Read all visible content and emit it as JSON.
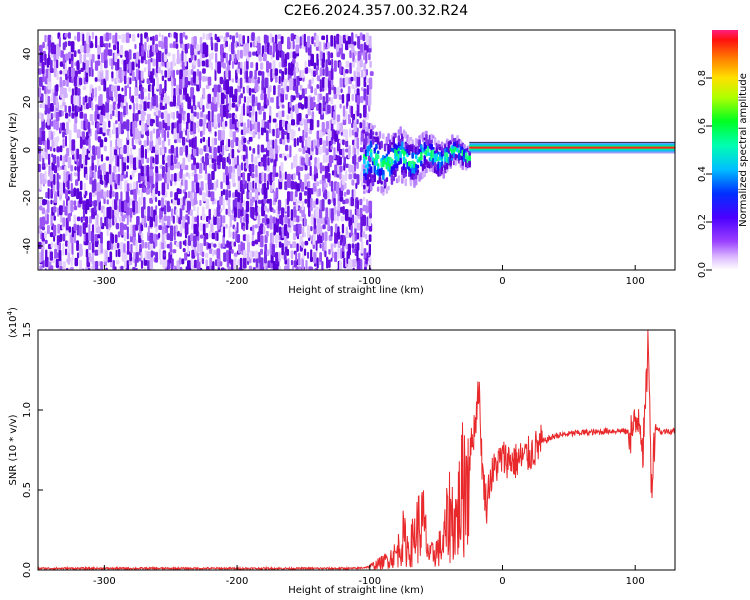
{
  "title": "C2E6.2024.357.00.32.R24",
  "colors": {
    "snr_line": "#e8282a",
    "noise_purple": "#7a2ee8",
    "ridge_red": "#ff2020"
  },
  "chart_data": [
    {
      "type": "heatmap",
      "xlabel": "Height of straight line (km)",
      "ylabel": "Frequency (Hz)",
      "xlim": [
        -350,
        130
      ],
      "ylim": [
        -50,
        50
      ],
      "xticks": [
        -300,
        -200,
        -100,
        0,
        100
      ],
      "yticks": [
        -40,
        -20,
        0,
        20,
        40
      ],
      "colorbar": {
        "label": "Normalized spectral amplitude",
        "range": [
          0.0,
          1.0
        ],
        "ticks": [
          "0.0",
          "0.2",
          "0.4",
          "0.6",
          "0.8"
        ],
        "tick_values": [
          0.0,
          0.2,
          0.4,
          0.6,
          0.8
        ]
      },
      "features": {
        "noise_region_x": [
          -350,
          -100
        ],
        "transition_region_x": [
          -105,
          -25
        ],
        "ridge_frequency_hz": 1,
        "ridge_region_x": [
          -25,
          130
        ]
      }
    },
    {
      "type": "line",
      "xlabel": "Height of straight line (km)",
      "ylabel": "SNR (10 * v/v)",
      "yscale_label": "(x10",
      "yscale_exp": "4",
      "yscale_close": ")",
      "xlim": [
        -350,
        130
      ],
      "ylim": [
        0.0,
        1.5
      ],
      "xticks": [
        -300,
        -200,
        -100,
        0,
        100
      ],
      "yticks": [
        "0.0",
        "0.5",
        "1.0",
        "1.5"
      ],
      "ytick_values": [
        0.0,
        0.5,
        1.0,
        1.5
      ],
      "series": [
        {
          "x": [
            -350,
            -300,
            -250,
            -200,
            -150,
            -110,
            -100,
            -90,
            -80,
            -75,
            -70,
            -65,
            -60,
            -55,
            -50,
            -45,
            -40,
            -35,
            -30,
            -25,
            -20,
            -18,
            -15,
            -12,
            -10,
            -5,
            0,
            10,
            20,
            30,
            40,
            50,
            60,
            70,
            80,
            90,
            95,
            100,
            103,
            106,
            108,
            110,
            112,
            115,
            120,
            125,
            130
          ],
          "y": [
            0.01,
            0.01,
            0.01,
            0.01,
            0.01,
            0.01,
            0.02,
            0.05,
            0.1,
            0.2,
            0.12,
            0.25,
            0.3,
            0.08,
            0.12,
            0.15,
            0.35,
            0.3,
            0.5,
            0.7,
            0.95,
            1.17,
            0.6,
            0.4,
            0.55,
            0.65,
            0.7,
            0.68,
            0.72,
            0.8,
            0.84,
            0.85,
            0.86,
            0.86,
            0.87,
            0.87,
            0.86,
            0.88,
            1.0,
            0.75,
            1.05,
            1.5,
            0.5,
            0.9,
            0.86,
            0.87,
            0.87
          ]
        }
      ]
    }
  ]
}
